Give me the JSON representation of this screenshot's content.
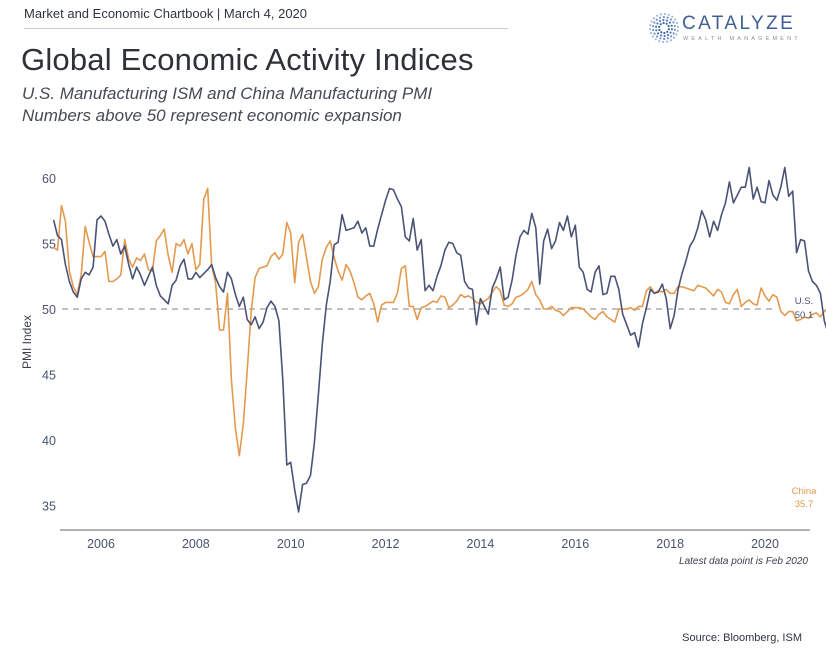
{
  "header": {
    "chartbook": "Market and Economic Chartbook | March 4, 2020",
    "title": "Global Economic Activity Indices",
    "subtitle_line1": "U.S. Manufacturing ISM and China Manufacturing PMI",
    "subtitle_line2": "Numbers above 50 represent economic expansion"
  },
  "logo": {
    "name": "CATALYZE",
    "tagline": "WEALTH MANAGEMENT",
    "icon": "sunburst-dots-icon"
  },
  "footer": {
    "note": "Latest data point is Feb 2020",
    "source": "Source: Bloomberg, ISM"
  },
  "colors": {
    "us": "#4a5375",
    "china": "#e39a4f",
    "reference": "#9a9a9a",
    "tick_text": "#4a5470"
  },
  "chart_data": {
    "type": "line",
    "title": "Global Economic Activity Indices",
    "xlabel": "",
    "ylabel": "PMI Index",
    "ylim": [
      35,
      60
    ],
    "xlim": [
      2005.0,
      2020.25
    ],
    "yticks": [
      "60",
      "55",
      "50",
      "45",
      "40",
      "35"
    ],
    "ytick_values": [
      60,
      55,
      50,
      45,
      40,
      35
    ],
    "xticks": [
      "2006",
      "2008",
      "2010",
      "2012",
      "2014",
      "2016",
      "2018",
      "2020"
    ],
    "xtick_values": [
      2006,
      2008,
      2010,
      2012,
      2014,
      2016,
      2018,
      2020
    ],
    "reference_line": {
      "y": 50,
      "style": "dashed"
    },
    "grid": false,
    "legend": "none (end labels at right)",
    "x_start": 2005.0,
    "x_step_months": 1,
    "series": [
      {
        "name": "U.S.",
        "end_label": "U.S.",
        "end_value_label": "50.1",
        "values": [
          56.8,
          55.6,
          55.3,
          53.4,
          52.1,
          51.3,
          50.9,
          52.3,
          52.8,
          52.6,
          53.2,
          56.8,
          57.1,
          56.7,
          55.7,
          54.8,
          55.3,
          54.2,
          54.8,
          53.4,
          52.3,
          53.2,
          52.6,
          51.8,
          52.5,
          53.2,
          51.8,
          51.0,
          50.7,
          50.4,
          51.8,
          52.2,
          53.3,
          53.8,
          52.3,
          52.3,
          52.8,
          52.4,
          52.7,
          53.0,
          53.4,
          52.4,
          51.7,
          51.3,
          52.8,
          52.3,
          51.1,
          50.2,
          50.9,
          49.2,
          48.8,
          49.4,
          48.5,
          49.0,
          50.1,
          50.6,
          50.2,
          49.1,
          44.6,
          38.1,
          38.3,
          36.2,
          34.5,
          36.6,
          36.7,
          37.3,
          39.8,
          43.5,
          47.3,
          50.3,
          52.1,
          54.9,
          55.1,
          57.2,
          56.0,
          56.1,
          56.2,
          56.7,
          55.8,
          56.2,
          54.8,
          54.8,
          56.1,
          57.2,
          58.3,
          59.2,
          59.1,
          58.4,
          57.8,
          55.5,
          55.2,
          56.9,
          54.5,
          55.3,
          51.4,
          51.8,
          51.4,
          52.5,
          53.3,
          54.5,
          55.1,
          55.0,
          54.3,
          54.1,
          52.1,
          51.6,
          51.5,
          48.8,
          50.8,
          50.2,
          49.6,
          51.6,
          52.3,
          53.2,
          50.7,
          50.9,
          52.2,
          54.1,
          55.5,
          56.0,
          55.7,
          57.3,
          56.2,
          51.9,
          55.2,
          56.1,
          54.6,
          55.2,
          56.6,
          56.0,
          57.1,
          55.5,
          56.4,
          53.2,
          52.8,
          51.5,
          51.3,
          52.8,
          53.3,
          51.1,
          51.2,
          52.5,
          52.5,
          51.5,
          49.6,
          48.8,
          48.0,
          48.2,
          47.1,
          48.9,
          50.1,
          51.5,
          51.2,
          51.3,
          51.9,
          50.8,
          48.5,
          49.5,
          51.5,
          52.7,
          53.7,
          54.8,
          55.3,
          56.2,
          57.5,
          56.8,
          55.5,
          56.7,
          56.0,
          57.2,
          58.1,
          59.7,
          58.1,
          58.7,
          59.3,
          59.3,
          60.8,
          58.4,
          59.3,
          58.2,
          58.1,
          59.8,
          58.7,
          58.3,
          59.3,
          60.8,
          58.6,
          59.0,
          54.3,
          55.3,
          55.2,
          52.9,
          52.1,
          51.8,
          51.2,
          49.1,
          48.1,
          48.1,
          48.3,
          47.8,
          47.2,
          50.9,
          50.1
        ]
      },
      {
        "name": "China",
        "end_label": "China",
        "end_value_label": "35.7",
        "values": [
          54.7,
          54.5,
          57.9,
          56.7,
          52.9,
          51.7,
          51.1,
          52.6,
          56.3,
          55.1,
          54.0,
          54.0,
          54.0,
          54.4,
          52.1,
          52.1,
          52.3,
          52.6,
          55.3,
          53.8,
          53.2,
          53.9,
          53.7,
          54.2,
          53.0,
          52.9,
          55.2,
          55.6,
          56.1,
          54.1,
          52.8,
          55.0,
          54.8,
          55.3,
          54.2,
          55.0,
          53.0,
          53.4,
          58.4,
          59.2,
          53.3,
          52.0,
          48.4,
          48.4,
          51.2,
          44.6,
          40.9,
          38.8,
          41.2,
          45.3,
          49.8,
          52.4,
          53.1,
          53.2,
          53.3,
          54.0,
          54.3,
          53.8,
          54.2,
          56.6,
          55.8,
          52.0,
          55.1,
          55.7,
          53.9,
          52.1,
          51.2,
          51.7,
          53.8,
          54.7,
          55.2,
          53.9,
          52.9,
          52.2,
          53.4,
          52.9,
          52.0,
          50.9,
          50.7,
          51.0,
          51.2,
          50.4,
          49.0,
          50.3,
          50.5,
          50.5,
          50.5,
          51.2,
          53.1,
          53.3,
          50.2,
          50.2,
          49.2,
          50.1,
          50.2,
          50.4,
          50.6,
          50.5,
          51.0,
          50.9,
          50.1,
          50.3,
          50.6,
          51.1,
          50.9,
          51.0,
          50.8,
          50.5,
          50.4,
          50.6,
          50.8,
          51.3,
          51.7,
          51.4,
          50.3,
          50.2,
          50.4,
          50.9,
          51.0,
          51.2,
          51.5,
          52.1,
          51.1,
          50.7,
          50.0,
          50.0,
          50.2,
          49.9,
          49.8,
          49.5,
          49.8,
          50.1,
          50.1,
          50.1,
          50.0,
          49.7,
          49.4,
          49.2,
          49.6,
          49.8,
          49.4,
          49.2,
          49.0,
          50.0,
          50.0,
          50.0,
          50.1,
          49.9,
          50.2,
          50.2,
          51.4,
          51.7,
          51.2,
          51.4,
          51.3,
          51.5,
          51.2,
          51.2,
          51.7,
          51.7,
          51.6,
          51.5,
          51.4,
          51.8,
          51.7,
          51.6,
          51.3,
          51.0,
          51.5,
          51.3,
          50.5,
          50.4,
          51.1,
          51.5,
          50.2,
          50.5,
          50.7,
          50.4,
          50.3,
          51.6,
          51.0,
          50.6,
          51.1,
          50.9,
          49.8,
          49.5,
          49.8,
          49.8,
          49.1,
          49.2,
          49.4,
          49.3,
          49.6,
          49.7,
          49.4,
          49.8,
          50.2,
          50.2,
          50.1,
          50.0,
          35.7
        ]
      }
    ]
  }
}
